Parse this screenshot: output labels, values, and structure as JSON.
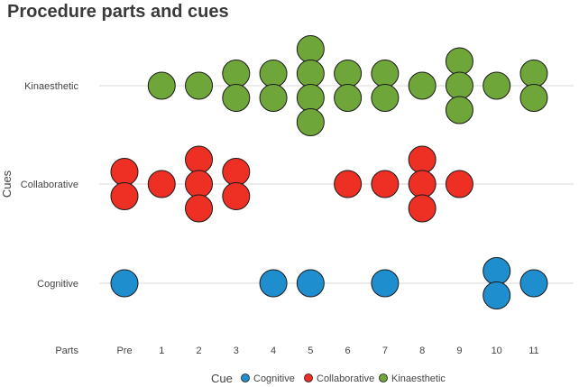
{
  "chart_data": {
    "type": "scatter",
    "title": "Procedure parts and cues",
    "xlabel": "Parts",
    "ylabel": "Cues",
    "x_categories": [
      "Pre",
      "1",
      "2",
      "3",
      "4",
      "5",
      "6",
      "7",
      "8",
      "9",
      "10",
      "11"
    ],
    "y_categories": [
      "Cognitive",
      "Collaborative",
      "Kinaesthetic"
    ],
    "grid": "horizontal",
    "legend_position": "bottom",
    "legend_title": "Cue",
    "series": [
      {
        "name": "Cognitive",
        "color": "#1f8ecf",
        "counts": {
          "Pre": 1,
          "1": 0,
          "2": 0,
          "3": 0,
          "4": 1,
          "5": 1,
          "6": 0,
          "7": 1,
          "8": 0,
          "9": 0,
          "10": 2,
          "11": 1
        }
      },
      {
        "name": "Collaborative",
        "color": "#ee2f24",
        "counts": {
          "Pre": 2,
          "1": 1,
          "2": 3,
          "3": 2,
          "4": 0,
          "5": 0,
          "6": 1,
          "7": 1,
          "8": 3,
          "9": 1,
          "10": 0,
          "11": 0
        }
      },
      {
        "name": "Kinaesthetic",
        "color": "#6fa63a",
        "counts": {
          "Pre": 0,
          "1": 1,
          "2": 1,
          "3": 2,
          "4": 2,
          "5": 4,
          "6": 2,
          "7": 2,
          "8": 1,
          "9": 3,
          "10": 1,
          "11": 2
        }
      }
    ]
  }
}
